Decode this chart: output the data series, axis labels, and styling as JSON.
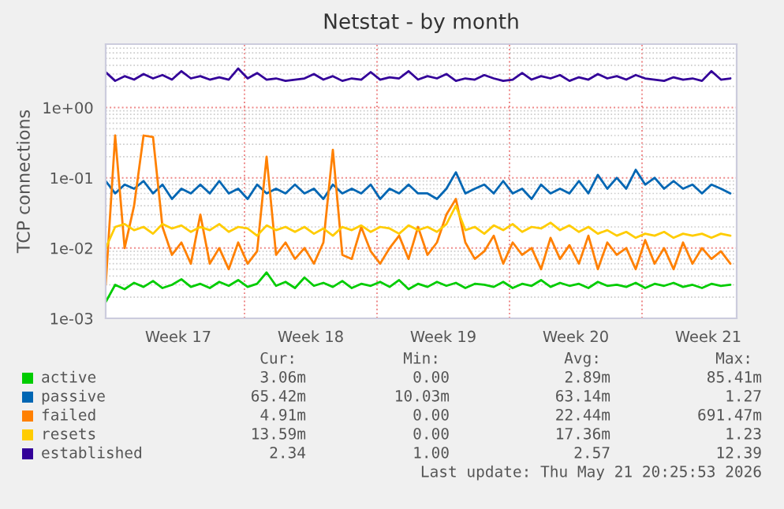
{
  "chart_data": {
    "type": "line",
    "title": "Netstat - by month",
    "ylabel": "TCP connections",
    "x": [
      "2026-04-19T16:00",
      "2026-04-20T04:00",
      "2026-04-20T16:00",
      "2026-04-21T04:00",
      "2026-04-21T16:00",
      "2026-04-22T04:00",
      "2026-04-22T16:00",
      "2026-04-23T04:00",
      "2026-04-23T16:00",
      "2026-04-24T04:00",
      "2026-04-24T16:00",
      "2026-04-25T04:00",
      "2026-04-25T16:00",
      "2026-04-26T04:00",
      "2026-04-26T16:00",
      "2026-04-27T04:00",
      "2026-04-27T16:00",
      "2026-04-28T04:00",
      "2026-04-28T16:00",
      "2026-04-29T04:00",
      "2026-04-29T16:00",
      "2026-04-30T04:00",
      "2026-04-30T16:00",
      "2026-05-01T04:00",
      "2026-05-01T16:00",
      "2026-05-02T04:00",
      "2026-05-02T16:00",
      "2026-05-03T04:00",
      "2026-05-03T16:00",
      "2026-05-04T04:00",
      "2026-05-04T16:00",
      "2026-05-05T04:00",
      "2026-05-05T16:00",
      "2026-05-06T04:00",
      "2026-05-06T16:00",
      "2026-05-07T04:00",
      "2026-05-07T16:00",
      "2026-05-08T04:00",
      "2026-05-08T16:00",
      "2026-05-09T04:00",
      "2026-05-09T16:00",
      "2026-05-10T04:00",
      "2026-05-10T16:00",
      "2026-05-11T04:00",
      "2026-05-11T16:00",
      "2026-05-12T04:00",
      "2026-05-12T16:00",
      "2026-05-13T04:00",
      "2026-05-13T16:00",
      "2026-05-14T04:00",
      "2026-05-14T16:00",
      "2026-05-15T04:00",
      "2026-05-15T16:00",
      "2026-05-16T04:00",
      "2026-05-16T16:00",
      "2026-05-17T04:00",
      "2026-05-17T16:00",
      "2026-05-18T04:00",
      "2026-05-18T16:00",
      "2026-05-19T04:00",
      "2026-05-19T16:00",
      "2026-05-20T04:00",
      "2026-05-20T16:00",
      "2026-05-21T04:00",
      "2026-05-21T16:00",
      "2026-05-22T04:00",
      "2026-05-22T16:00"
    ],
    "series": [
      {
        "name": "active",
        "color": "#00cc00",
        "values": [
          0.0017,
          0.003,
          0.0026,
          0.0032,
          0.0028,
          0.0034,
          0.0027,
          0.003,
          0.0036,
          0.0028,
          0.0031,
          0.0027,
          0.0033,
          0.0029,
          0.0035,
          0.0028,
          0.0031,
          0.0045,
          0.0029,
          0.0033,
          0.0027,
          0.0038,
          0.0029,
          0.0032,
          0.0028,
          0.0034,
          0.0027,
          0.0031,
          0.0029,
          0.0033,
          0.0028,
          0.0035,
          0.0026,
          0.0031,
          0.0028,
          0.0033,
          0.0029,
          0.0032,
          0.0027,
          0.0031,
          0.003,
          0.0028,
          0.0033,
          0.0027,
          0.0031,
          0.0029,
          0.0035,
          0.0028,
          0.0032,
          0.0029,
          0.0031,
          0.0027,
          0.0033,
          0.0029,
          0.003,
          0.0028,
          0.0032,
          0.0027,
          0.0031,
          0.0029,
          0.0032,
          0.0028,
          0.003,
          0.0027,
          0.0031,
          0.0029,
          0.003
        ]
      },
      {
        "name": "passive",
        "color": "#0066b3",
        "values": [
          0.09,
          0.06,
          0.08,
          0.07,
          0.09,
          0.06,
          0.08,
          0.05,
          0.07,
          0.06,
          0.08,
          0.06,
          0.09,
          0.06,
          0.07,
          0.05,
          0.08,
          0.06,
          0.07,
          0.06,
          0.08,
          0.06,
          0.07,
          0.05,
          0.08,
          0.06,
          0.07,
          0.06,
          0.08,
          0.05,
          0.07,
          0.06,
          0.08,
          0.06,
          0.06,
          0.05,
          0.07,
          0.12,
          0.06,
          0.07,
          0.08,
          0.06,
          0.09,
          0.06,
          0.07,
          0.05,
          0.08,
          0.06,
          0.07,
          0.06,
          0.09,
          0.06,
          0.11,
          0.07,
          0.1,
          0.07,
          0.13,
          0.08,
          0.1,
          0.07,
          0.09,
          0.07,
          0.08,
          0.06,
          0.08,
          0.07,
          0.06
        ]
      },
      {
        "name": "failed",
        "color": "#ff8000",
        "values": [
          0.003,
          0.4,
          0.01,
          0.04,
          0.4,
          0.38,
          0.02,
          0.008,
          0.012,
          0.006,
          0.03,
          0.006,
          0.01,
          0.005,
          0.012,
          0.006,
          0.009,
          0.2,
          0.008,
          0.012,
          0.007,
          0.01,
          0.006,
          0.012,
          0.25,
          0.008,
          0.007,
          0.02,
          0.009,
          0.006,
          0.01,
          0.015,
          0.007,
          0.02,
          0.008,
          0.012,
          0.03,
          0.05,
          0.012,
          0.007,
          0.009,
          0.015,
          0.006,
          0.012,
          0.008,
          0.01,
          0.005,
          0.014,
          0.007,
          0.011,
          0.006,
          0.015,
          0.005,
          0.012,
          0.008,
          0.01,
          0.005,
          0.013,
          0.006,
          0.01,
          0.005,
          0.012,
          0.006,
          0.01,
          0.007,
          0.009,
          0.006
        ]
      },
      {
        "name": "resets",
        "color": "#ffcc00",
        "values": [
          0.01,
          0.02,
          0.022,
          0.018,
          0.02,
          0.016,
          0.022,
          0.019,
          0.021,
          0.017,
          0.02,
          0.018,
          0.022,
          0.017,
          0.02,
          0.019,
          0.015,
          0.021,
          0.018,
          0.02,
          0.017,
          0.02,
          0.016,
          0.019,
          0.015,
          0.02,
          0.018,
          0.021,
          0.017,
          0.02,
          0.019,
          0.016,
          0.021,
          0.018,
          0.02,
          0.017,
          0.022,
          0.04,
          0.018,
          0.02,
          0.016,
          0.021,
          0.018,
          0.022,
          0.017,
          0.02,
          0.019,
          0.023,
          0.018,
          0.021,
          0.017,
          0.02,
          0.016,
          0.018,
          0.015,
          0.017,
          0.014,
          0.016,
          0.015,
          0.017,
          0.014,
          0.016,
          0.015,
          0.016,
          0.014,
          0.016,
          0.015
        ]
      },
      {
        "name": "established",
        "color": "#330099",
        "values": [
          3.2,
          2.4,
          2.8,
          2.5,
          3.0,
          2.6,
          2.9,
          2.5,
          3.3,
          2.6,
          2.8,
          2.5,
          2.7,
          2.5,
          3.6,
          2.6,
          3.1,
          2.5,
          2.6,
          2.4,
          2.5,
          2.6,
          3.0,
          2.5,
          2.8,
          2.4,
          2.6,
          2.5,
          3.2,
          2.5,
          2.7,
          2.6,
          3.3,
          2.5,
          2.8,
          2.6,
          3.0,
          2.4,
          2.6,
          2.5,
          2.9,
          2.6,
          2.4,
          2.5,
          3.1,
          2.5,
          2.8,
          2.6,
          2.9,
          2.4,
          2.7,
          2.5,
          3.0,
          2.6,
          2.8,
          2.5,
          2.9,
          2.6,
          2.5,
          2.4,
          2.7,
          2.5,
          2.6,
          2.4,
          3.3,
          2.5,
          2.6
        ]
      }
    ],
    "log": "y",
    "ylim": [
      0.001,
      8
    ],
    "yticks": [
      {
        "value": 0.001,
        "label": "1e-03"
      },
      {
        "value": 0.01,
        "label": "1e-02"
      },
      {
        "value": 0.1,
        "label": "1e-01"
      },
      {
        "value": 1,
        "label": "1e+00"
      }
    ],
    "xlim": [
      "2026-04-19T16:00",
      "2026-05-23T00:00"
    ],
    "xticks": [
      {
        "value": "2026-04-23T12:00",
        "label": "Week 17"
      },
      {
        "value": "2026-04-27",
        "label": null
      },
      {
        "value": "2026-04-30T12:00",
        "label": "Week 18"
      },
      {
        "value": "2026-05-04",
        "label": null
      },
      {
        "value": "2026-05-07T12:00",
        "label": "Week 19"
      },
      {
        "value": "2026-05-11",
        "label": null
      },
      {
        "value": "2026-05-14T12:00",
        "label": "Week 20"
      },
      {
        "value": "2026-05-18",
        "label": null
      },
      {
        "value": "2026-05-21T12:00",
        "label": "Week 21"
      }
    ],
    "grid": true,
    "legend": "bottom",
    "line_style": "solid",
    "marker": "none",
    "annotations": [
      "Cur:",
      "Min:",
      "Avg:",
      "Max:",
      "3.06m",
      "0.00",
      "2.89m",
      "85.41m",
      "65.42m",
      "10.03m",
      "63.14m",
      "1.27",
      "4.91m",
      "0.00",
      "22.44m",
      "691.47m",
      "13.59m",
      "0.00",
      "17.36m",
      "1.23",
      "2.34",
      "1.00",
      "2.57",
      "12.39",
      "Last update: Thu May 21 20:25:53 2026"
    ]
  }
}
